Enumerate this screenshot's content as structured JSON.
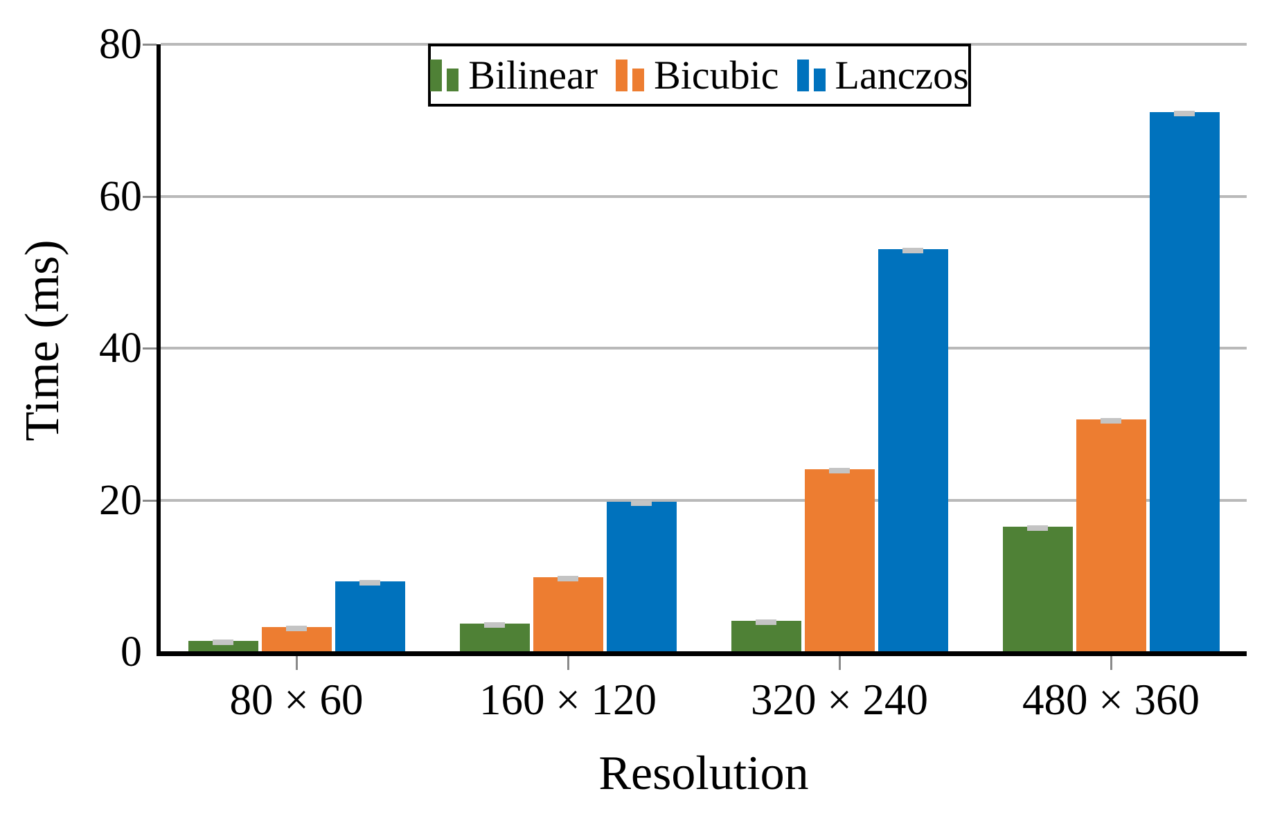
{
  "chart_data": {
    "type": "bar",
    "title": "",
    "xlabel": "Resolution",
    "ylabel": "Time (ms)",
    "categories": [
      "80 × 60",
      "160 × 120",
      "320 × 240",
      "480 × 360"
    ],
    "series": [
      {
        "name": "Bilinear",
        "color": "#4F8136",
        "values": [
          1.5,
          3.7,
          4.1,
          16.5
        ],
        "errors": [
          0.25,
          0.25,
          0.35,
          0.3
        ]
      },
      {
        "name": "Bicubic",
        "color": "#ED7D31",
        "values": [
          3.3,
          9.8,
          24.1,
          30.6
        ],
        "errors": [
          0.25,
          0.3,
          0.4,
          0.35
        ]
      },
      {
        "name": "Lanczos",
        "color": "#0072BD",
        "values": [
          9.3,
          19.8,
          53.0,
          71.1
        ],
        "errors": [
          0.25,
          0.3,
          0.35,
          0.45
        ]
      }
    ],
    "ylim": [
      0,
      80
    ],
    "yticks": [
      0,
      20,
      40,
      60,
      80
    ],
    "grid": "horizontal",
    "legend_position": "top-center",
    "colors": {
      "grid": "#b9b9b9",
      "axis": "#000000",
      "error_cap": "#c4c4c4",
      "tick": "#8a8a8a",
      "background": "#ffffff"
    }
  }
}
